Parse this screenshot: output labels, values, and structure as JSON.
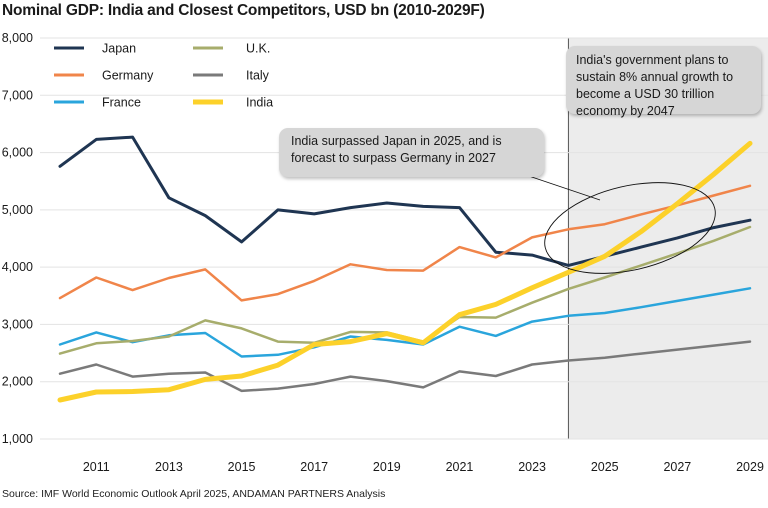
{
  "title": "Nominal GDP: India and Closest Competitors, USD bn (2010-2029F)",
  "source": "Source: IMF World Economic Outlook April 2025, ANDAMAN PARTNERS Analysis",
  "callouts": {
    "forecast_note": "India's government plans to sustain 8% annual growth to become a USD 30 trillion economy by 2047",
    "surpass_note": "India surpassed Japan in 2025, and is forecast to surpass Germany in 2027"
  },
  "chart_data": {
    "type": "line",
    "title": "Nominal GDP: India and Closest Competitors, USD bn (2010-2029F)",
    "xlabel": "",
    "ylabel": "",
    "x": [
      2010,
      2011,
      2012,
      2013,
      2014,
      2015,
      2016,
      2017,
      2018,
      2019,
      2020,
      2021,
      2022,
      2023,
      2024,
      2025,
      2026,
      2027,
      2028,
      2029
    ],
    "xlim": [
      2010,
      2029
    ],
    "ylim": [
      1000,
      8000
    ],
    "yticks": [
      1000,
      2000,
      3000,
      4000,
      5000,
      6000,
      7000,
      8000
    ],
    "ytick_labels": [
      "1,000",
      "2,000",
      "3,000",
      "4,000",
      "5,000",
      "6,000",
      "7,000",
      "8,000"
    ],
    "xticks": [
      2011,
      2013,
      2015,
      2017,
      2019,
      2021,
      2023,
      2025,
      2027,
      2029
    ],
    "xtick_labels": [
      "2011",
      "2013",
      "2015",
      "2017",
      "2019",
      "2021",
      "2023",
      "2025",
      "2027",
      "2029"
    ],
    "forecast_start": 2024,
    "grid": "horizontal",
    "legend_position": "top-left",
    "series": [
      {
        "name": "Japan",
        "color": "#1f3552",
        "width": 3,
        "values": [
          5760,
          6230,
          6270,
          5210,
          4900,
          4440,
          5000,
          4930,
          5040,
          5120,
          5060,
          5040,
          4260,
          4210,
          4030,
          4190,
          4350,
          4510,
          4690,
          4820
        ]
      },
      {
        "name": "Germany",
        "color": "#f0854a",
        "width": 2.5,
        "values": [
          3460,
          3820,
          3600,
          3810,
          3960,
          3420,
          3530,
          3760,
          4050,
          3950,
          3940,
          4350,
          4170,
          4520,
          4660,
          4750,
          4920,
          5080,
          5250,
          5420
        ]
      },
      {
        "name": "France",
        "color": "#2aa5dc",
        "width": 2.5,
        "values": [
          2650,
          2860,
          2690,
          2810,
          2850,
          2440,
          2470,
          2600,
          2790,
          2730,
          2650,
          2960,
          2800,
          3050,
          3150,
          3200,
          3300,
          3410,
          3520,
          3630
        ]
      },
      {
        "name": "U.K.",
        "color": "#a7ad6c",
        "width": 2.5,
        "values": [
          2490,
          2670,
          2710,
          2790,
          3070,
          2930,
          2700,
          2680,
          2870,
          2860,
          2700,
          3130,
          3120,
          3380,
          3620,
          3820,
          4030,
          4240,
          4460,
          4700
        ]
      },
      {
        "name": "Italy",
        "color": "#7a7a7a",
        "width": 2.5,
        "values": [
          2140,
          2300,
          2090,
          2140,
          2160,
          1840,
          1880,
          1960,
          2090,
          2010,
          1900,
          2180,
          2100,
          2300,
          2370,
          2420,
          2490,
          2560,
          2630,
          2700
        ]
      },
      {
        "name": "India",
        "color": "#fcd12a",
        "width": 5,
        "values": [
          1680,
          1820,
          1830,
          1860,
          2040,
          2100,
          2290,
          2650,
          2700,
          2840,
          2680,
          3170,
          3350,
          3640,
          3910,
          4190,
          4620,
          5110,
          5620,
          6160
        ]
      }
    ]
  }
}
